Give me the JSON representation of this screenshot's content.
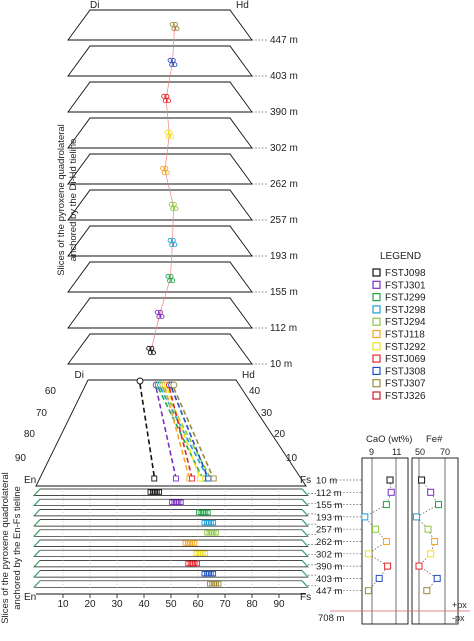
{
  "upper_panel": {
    "corner_left": "Di",
    "corner_right": "Hd",
    "axis_title_line1": "Slices of the pyroxene quadrolateral",
    "axis_title_line2": "anchored by the Di-Hd tieline",
    "depth_labels": [
      "447 m",
      "403 m",
      "390 m",
      "302 m",
      "262 m",
      "257 m",
      "193 m",
      "155 m",
      "112 m",
      "10 m"
    ]
  },
  "lower_panel": {
    "corner_di": "Di",
    "corner_hd": "Hd",
    "corner_en": "En",
    "corner_fs": "Fs",
    "corner_en_bottom": "En",
    "corner_fs_bottom": "Fs",
    "axis_title_line1": "Slices of the pyroxene quadrolateral",
    "axis_title_line2": "anchored by the En-Fs tieline",
    "left_ticks": [
      "60",
      "70",
      "80",
      "90"
    ],
    "right_ticks": [
      "40",
      "30",
      "20",
      "10"
    ],
    "bottom_ticks": [
      "10",
      "20",
      "30",
      "40",
      "50",
      "60",
      "70",
      "80",
      "90"
    ],
    "depth_labels": [
      "10 m",
      "112 m",
      "155 m",
      "193 m",
      "257 m",
      "262 m",
      "302 m",
      "390 m",
      "403 m",
      "447 m"
    ]
  },
  "legend": {
    "title": "LEGEND",
    "items": [
      {
        "label": "FSTJ098",
        "color": "#111111"
      },
      {
        "label": "FSTJ301",
        "color": "#7b2fbf"
      },
      {
        "label": "FSTJ299",
        "color": "#1fa84a"
      },
      {
        "label": "FSTJ298",
        "color": "#1e9fd8"
      },
      {
        "label": "FSTJ294",
        "color": "#8cc63f"
      },
      {
        "label": "FSTJ118",
        "color": "#f5a623"
      },
      {
        "label": "FSTJ292",
        "color": "#f2e21b"
      },
      {
        "label": "FSTJ069",
        "color": "#e8242a"
      },
      {
        "label": "FSTJ308",
        "color": "#1f4fbf"
      },
      {
        "label": "FSTJ307",
        "color": "#9b8b3a"
      },
      {
        "label": "FSTJ326",
        "color": "#c8202a"
      }
    ]
  },
  "profile": {
    "cao_title": "CaO (wt%)",
    "fe_title": "Fe#",
    "cao_ticks": [
      "9",
      "11"
    ],
    "fe_ticks": [
      "50",
      "70"
    ],
    "depth_labels": [
      "10 m",
      "112 m",
      "155 m",
      "193 m",
      "257 m",
      "262 m",
      "302 m",
      "390 m",
      "403 m",
      "447 m"
    ],
    "bottom_depth": "708 m",
    "plus_px": "+px",
    "minus_px": "-px"
  },
  "chart_data": {
    "type": "scatter",
    "categories": [
      "10 m",
      "112 m",
      "155 m",
      "193 m",
      "257 m",
      "262 m",
      "302 m",
      "390 m",
      "403 m",
      "447 m"
    ],
    "samples": [
      "FSTJ098",
      "FSTJ301",
      "FSTJ299",
      "FSTJ298",
      "FSTJ294",
      "FSTJ118",
      "FSTJ292",
      "FSTJ069",
      "FSTJ308",
      "FSTJ307"
    ],
    "fs_positions": [
      44,
      52,
      62,
      64,
      65,
      57,
      61,
      58,
      64,
      66
    ],
    "cao_wt_pct": [
      10.5,
      10.6,
      10.2,
      8.4,
      9.3,
      10.2,
      8.7,
      10.3,
      9.6,
      8.7
    ],
    "fe_number": [
      52,
      59,
      65,
      48,
      57,
      62,
      59,
      50,
      64,
      56
    ]
  }
}
